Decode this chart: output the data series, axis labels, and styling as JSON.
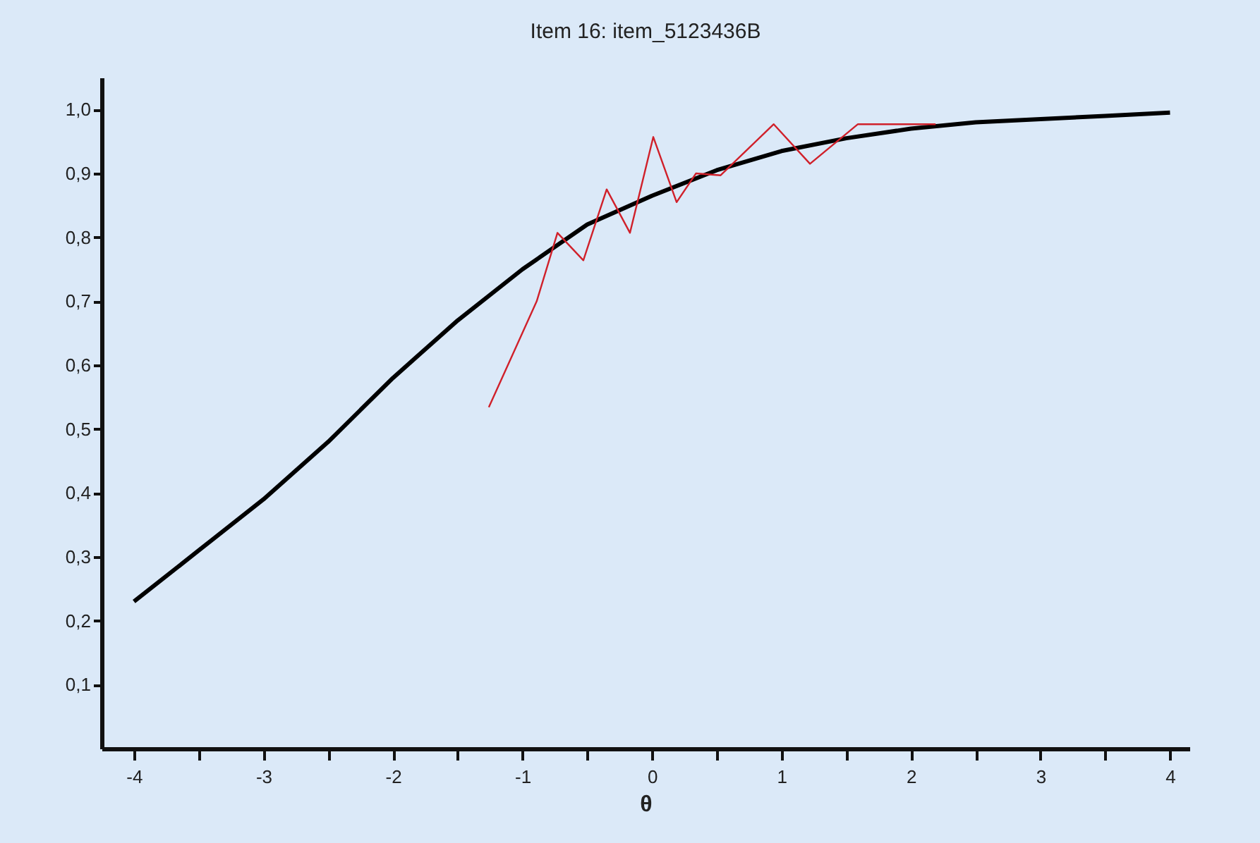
{
  "chart_data": {
    "type": "line",
    "title": "Item 16: item_5123436B",
    "xlabel": "θ",
    "xlim": [
      -4.25,
      4.15
    ],
    "ylim": [
      0,
      1.05
    ],
    "xticks": [
      -4,
      {
        "value": -3.5,
        "label": null
      },
      -3,
      {
        "value": -2.5,
        "label": null
      },
      -2,
      {
        "value": -1.5,
        "label": null
      },
      -1,
      {
        "value": -0.5,
        "label": null
      },
      0,
      {
        "value": 0.5,
        "label": null
      },
      1,
      {
        "value": 1.5,
        "label": null
      },
      2,
      {
        "value": 2.5,
        "label": null
      },
      3,
      {
        "value": 3.5,
        "label": null
      },
      4
    ],
    "yticks": [
      {
        "value": 0.1,
        "label": "0,1"
      },
      {
        "value": 0.2,
        "label": "0,2"
      },
      {
        "value": 0.3,
        "label": "0,3"
      },
      {
        "value": 0.4,
        "label": "0,4"
      },
      {
        "value": 0.5,
        "label": "0,5"
      },
      {
        "value": 0.6,
        "label": "0,6"
      },
      {
        "value": 0.7,
        "label": "0,7"
      },
      {
        "value": 0.8,
        "label": "0,8"
      },
      {
        "value": 0.9,
        "label": "0,9"
      },
      {
        "value": 1.0,
        "label": "1,0"
      }
    ],
    "grid": false,
    "marker": "none",
    "line_style": "solid",
    "series": [
      {
        "color": "#000000",
        "x": [
          -4,
          -3.5,
          -3,
          -2.5,
          -2,
          -1.5,
          -1,
          -0.5,
          0,
          0.5,
          1,
          1.5,
          2,
          2.5,
          3,
          3.5,
          4
        ],
        "values": [
          0.23,
          0.31,
          0.39,
          0.48,
          0.58,
          0.67,
          0.75,
          0.82,
          0.865,
          0.905,
          0.935,
          0.955,
          0.97,
          0.98,
          0.985,
          0.99,
          0.995
        ]
      },
      {
        "color": "#d0202a",
        "x": [
          -1.26,
          -0.89,
          -0.73,
          -0.53,
          -0.35,
          -0.17,
          0.01,
          0.19,
          0.34,
          0.53,
          0.94,
          1.22,
          1.59,
          2.19
        ],
        "values": [
          0.534,
          0.7,
          0.807,
          0.764,
          0.875,
          0.807,
          0.957,
          0.855,
          0.9,
          0.897,
          0.977,
          0.915,
          0.977,
          0.977
        ]
      }
    ]
  }
}
